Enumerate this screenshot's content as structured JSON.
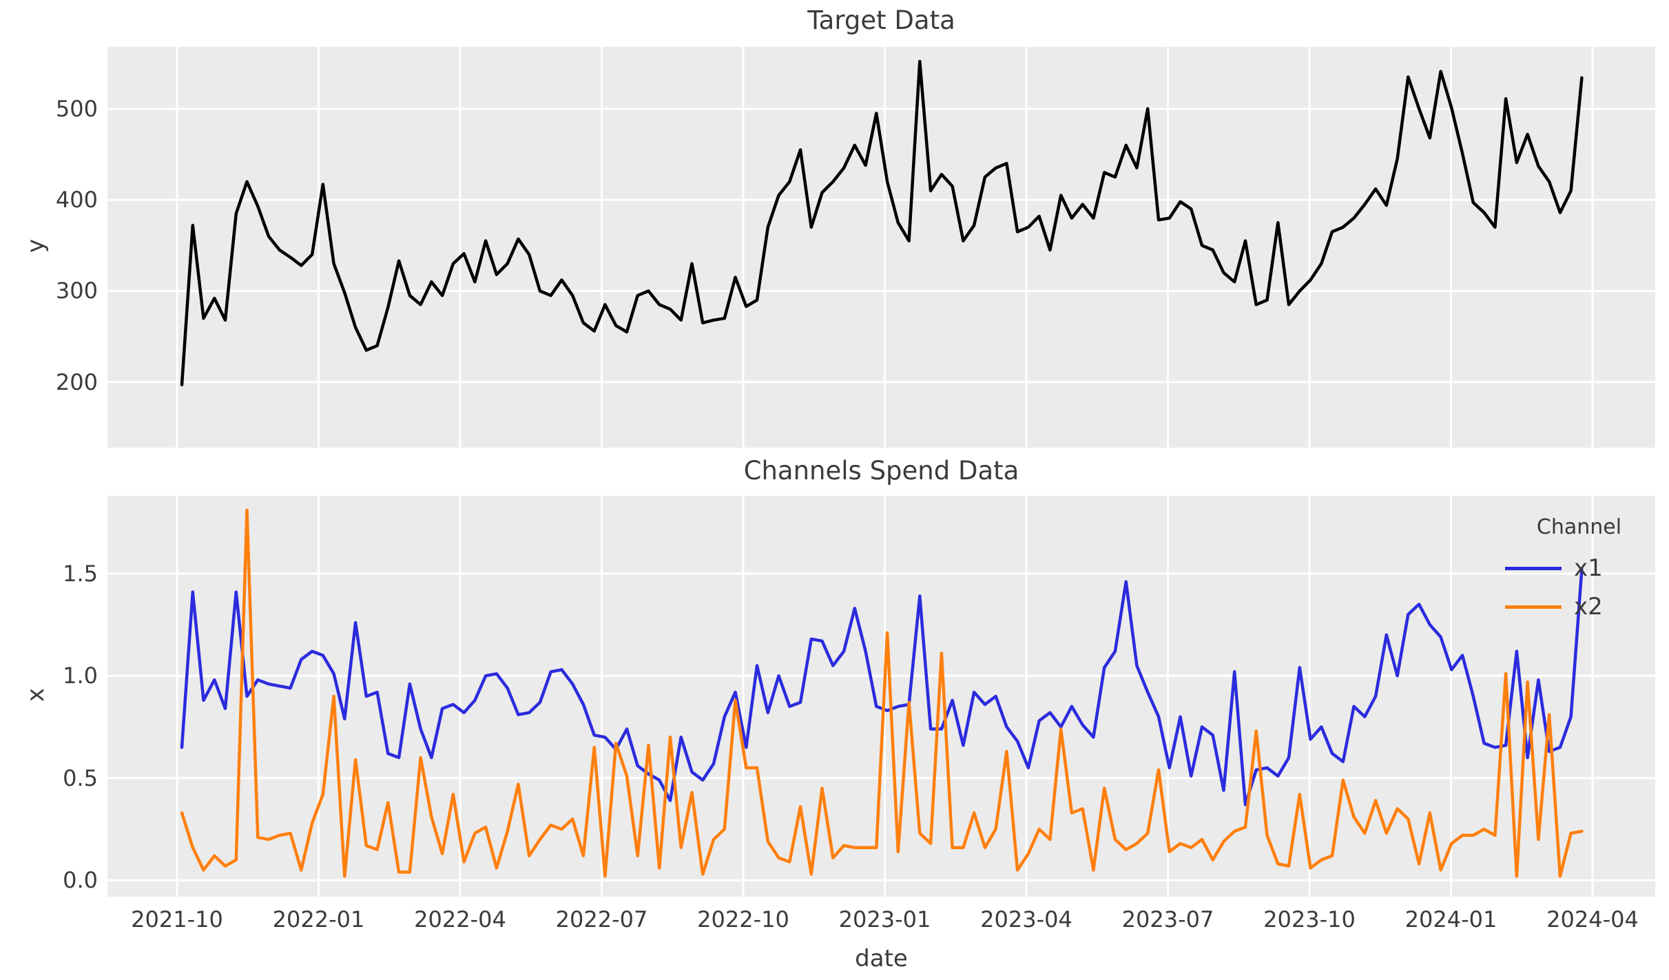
{
  "figure": {
    "background": "#ffffff",
    "plot_background": "#ebebeb",
    "grid_color": "#ffffff",
    "text_color": "#3b3b3b"
  },
  "chart_data": [
    {
      "type": "line",
      "title": "Target Data",
      "ylabel": "y",
      "xlabel": "",
      "grid": true,
      "legend_position": "none",
      "ylim": [
        128,
        568
      ],
      "yticks": [
        200,
        300,
        400,
        500
      ],
      "ytick_labels": [
        "200",
        "300",
        "400",
        "500"
      ],
      "xtick_labels": [
        "2021-10",
        "2022-01",
        "2022-04",
        "2022-07",
        "2022-10",
        "2023-01",
        "2023-04",
        "2023-07",
        "2023-10",
        "2024-01",
        "2024-04"
      ],
      "x_start_date": "2021-10-04",
      "x_step_days": 7,
      "series": [
        {
          "name": "y",
          "color": "#000000",
          "values": [
            197,
            372,
            270,
            292,
            268,
            385,
            420,
            393,
            360,
            345,
            337,
            328,
            340,
            417,
            330,
            298,
            260,
            235,
            240,
            282,
            333,
            295,
            285,
            310,
            295,
            330,
            341,
            310,
            355,
            318,
            330,
            357,
            340,
            300,
            295,
            312,
            295,
            265,
            256,
            285,
            262,
            255,
            295,
            300,
            285,
            280,
            268,
            330,
            265,
            268,
            270,
            315,
            283,
            290,
            370,
            405,
            420,
            455,
            370,
            408,
            420,
            435,
            460,
            438,
            495,
            420,
            375,
            355,
            552,
            410,
            428,
            415,
            355,
            372,
            425,
            435,
            440,
            365,
            370,
            382,
            345,
            405,
            380,
            395,
            380,
            430,
            425,
            460,
            435,
            500,
            378,
            380,
            398,
            390,
            350,
            345,
            320,
            310,
            355,
            285,
            290,
            375,
            285,
            300,
            312,
            330,
            365,
            370,
            380,
            395,
            412,
            394,
            445,
            535,
            500,
            468,
            541,
            501,
            451,
            397,
            386,
            370,
            511,
            441,
            472,
            437,
            420,
            386,
            410,
            534
          ]
        }
      ]
    },
    {
      "type": "line",
      "title": "Channels Spend Data",
      "ylabel": "x",
      "xlabel": "date",
      "grid": true,
      "legend_position": "upper right",
      "legend_title": "Channel",
      "ylim": [
        -0.08,
        1.88
      ],
      "yticks": [
        0.0,
        0.5,
        1.0,
        1.5
      ],
      "ytick_labels": [
        "0.0",
        "0.5",
        "1.0",
        "1.5"
      ],
      "xtick_labels": [
        "2021-10",
        "2022-01",
        "2022-04",
        "2022-07",
        "2022-10",
        "2023-01",
        "2023-04",
        "2023-07",
        "2023-10",
        "2024-01",
        "2024-04"
      ],
      "x_start_date": "2021-10-04",
      "x_step_days": 7,
      "series": [
        {
          "name": "x1",
          "color": "#2b2bde",
          "values": [
            0.65,
            1.41,
            0.88,
            0.98,
            0.84,
            1.41,
            0.9,
            0.98,
            0.96,
            0.95,
            0.94,
            1.08,
            1.12,
            1.1,
            1.01,
            0.79,
            1.26,
            0.9,
            0.92,
            0.62,
            0.6,
            0.96,
            0.74,
            0.6,
            0.84,
            0.86,
            0.82,
            0.88,
            1.0,
            1.01,
            0.94,
            0.81,
            0.82,
            0.87,
            1.02,
            1.03,
            0.96,
            0.86,
            0.71,
            0.7,
            0.64,
            0.74,
            0.56,
            0.52,
            0.49,
            0.39,
            0.7,
            0.53,
            0.49,
            0.57,
            0.8,
            0.92,
            0.65,
            1.05,
            0.82,
            1.0,
            0.85,
            0.87,
            1.18,
            1.17,
            1.05,
            1.12,
            1.33,
            1.12,
            0.85,
            0.83,
            0.85,
            0.86,
            1.39,
            0.74,
            0.74,
            0.88,
            0.66,
            0.92,
            0.86,
            0.9,
            0.75,
            0.68,
            0.55,
            0.78,
            0.82,
            0.75,
            0.85,
            0.76,
            0.7,
            1.04,
            1.12,
            1.46,
            1.05,
            0.92,
            0.8,
            0.55,
            0.8,
            0.51,
            0.75,
            0.71,
            0.44,
            1.02,
            0.37,
            0.54,
            0.55,
            0.51,
            0.6,
            1.04,
            0.69,
            0.75,
            0.62,
            0.58,
            0.85,
            0.8,
            0.9,
            1.2,
            1.0,
            1.3,
            1.35,
            1.25,
            1.19,
            1.03,
            1.1,
            0.9,
            0.67,
            0.65,
            0.66,
            1.12,
            0.6,
            0.98,
            0.63,
            0.65,
            0.8,
            1.52
          ]
        },
        {
          "name": "x2",
          "color": "#ff7f0e",
          "values": [
            0.33,
            0.16,
            0.05,
            0.12,
            0.07,
            0.1,
            1.81,
            0.21,
            0.2,
            0.22,
            0.23,
            0.05,
            0.28,
            0.42,
            0.9,
            0.02,
            0.59,
            0.17,
            0.15,
            0.38,
            0.04,
            0.04,
            0.6,
            0.31,
            0.13,
            0.42,
            0.09,
            0.23,
            0.26,
            0.06,
            0.24,
            0.47,
            0.12,
            0.2,
            0.27,
            0.25,
            0.3,
            0.12,
            0.65,
            0.02,
            0.67,
            0.51,
            0.12,
            0.66,
            0.06,
            0.7,
            0.16,
            0.43,
            0.03,
            0.2,
            0.25,
            0.88,
            0.55,
            0.55,
            0.19,
            0.11,
            0.09,
            0.36,
            0.03,
            0.45,
            0.11,
            0.17,
            0.16,
            0.16,
            0.16,
            1.21,
            0.14,
            0.87,
            0.23,
            0.18,
            1.11,
            0.16,
            0.16,
            0.33,
            0.16,
            0.25,
            0.63,
            0.05,
            0.13,
            0.25,
            0.2,
            0.74,
            0.33,
            0.35,
            0.05,
            0.45,
            0.2,
            0.15,
            0.18,
            0.23,
            0.54,
            0.14,
            0.18,
            0.16,
            0.2,
            0.1,
            0.19,
            0.24,
            0.26,
            0.73,
            0.22,
            0.08,
            0.07,
            0.42,
            0.06,
            0.1,
            0.12,
            0.49,
            0.31,
            0.23,
            0.39,
            0.23,
            0.35,
            0.3,
            0.08,
            0.33,
            0.05,
            0.18,
            0.22,
            0.22,
            0.25,
            0.22,
            1.01,
            0.02,
            0.97,
            0.2,
            0.81,
            0.02,
            0.23,
            0.24
          ]
        }
      ]
    }
  ]
}
